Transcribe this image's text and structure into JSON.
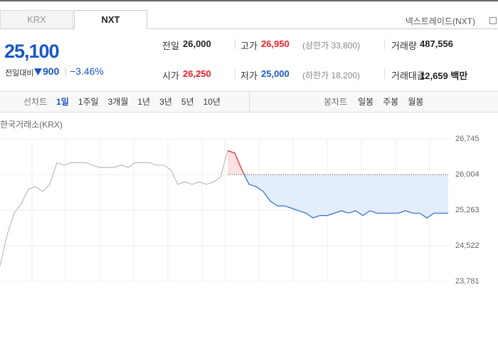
{
  "tabs": [
    "KRX",
    "NXT"
  ],
  "market_name": "넥스트레이드(NXT)",
  "price": "25,100",
  "change": {
    "label": "전일대비",
    "amount": "900",
    "percent": "−3.46%"
  },
  "stats": [
    {
      "label": "전일",
      "value": "26,000",
      "color": "#222"
    },
    {
      "label": "고가",
      "value": "26,950",
      "note": "(상한가 33,800)",
      "color": "#e8202a"
    },
    {
      "label": "거래량",
      "value": "487,556",
      "color": "#222"
    },
    {
      "label": "시가",
      "value": "26,250",
      "color": "#e8202a"
    },
    {
      "label": "저가",
      "value": "25,000",
      "note": "(하한가 18,200)",
      "color": "#1e5bc6"
    },
    {
      "label": "거래대금",
      "value": "12,659 백만",
      "color": "#222"
    }
  ],
  "periods": {
    "line_label": "선차트",
    "line": [
      "1일",
      "1주일",
      "3개월",
      "1년",
      "3년",
      "5년",
      "10년"
    ],
    "candle_label": "봉차트",
    "candle": [
      "일봉",
      "주봉",
      "월봉"
    ]
  },
  "chart_data": {
    "type": "line",
    "title": "한국거래소(KRX)",
    "categories": [
      null,
      null,
      null,
      null,
      null,
      null,
      null,
      null,
      null,
      null,
      null,
      null,
      null,
      null,
      null,
      null,
      null,
      null,
      null,
      null,
      null,
      null,
      null,
      null,
      null,
      null,
      null,
      null,
      null,
      null,
      null,
      null,
      null,
      null,
      null,
      null,
      null,
      null,
      null,
      null,
      null,
      null,
      null,
      null,
      null,
      null,
      null,
      null,
      null,
      null,
      null,
      null,
      null,
      null,
      null,
      null,
      null,
      null,
      null,
      null,
      null,
      null,
      null,
      null
    ],
    "series": [
      {
        "color": "#bbbbbb",
        "values": [
          24100,
          24750,
          25200,
          25400,
          25700,
          25750,
          25650,
          25800,
          26250,
          26200,
          26250,
          26250,
          26250,
          26200,
          26150,
          26150,
          26150,
          26200,
          26150,
          26250,
          26250,
          26250,
          26200,
          26200,
          26100,
          25800,
          25850,
          25800,
          25850,
          25800,
          25850,
          25950,
          26500,
          null,
          null,
          null,
          null,
          null,
          null,
          null,
          null,
          null,
          null,
          null,
          null,
          null,
          null,
          null,
          null,
          null,
          null,
          null,
          null,
          null,
          null,
          null,
          null,
          null,
          null,
          null,
          null,
          null,
          null,
          null
        ]
      },
      {
        "color": "#2a6bcf",
        "up_color": "#e8202a",
        "values": [
          null,
          null,
          null,
          null,
          null,
          null,
          null,
          null,
          null,
          null,
          null,
          null,
          null,
          null,
          null,
          null,
          null,
          null,
          null,
          null,
          null,
          null,
          null,
          null,
          null,
          null,
          null,
          null,
          null,
          null,
          null,
          null,
          26500,
          26450,
          26100,
          25800,
          25750,
          25650,
          25450,
          25350,
          25350,
          25300,
          25250,
          25200,
          25100,
          25150,
          25150,
          25200,
          25250,
          25200,
          25250,
          25150,
          25250,
          25200,
          25200,
          25200,
          25200,
          25250,
          25200,
          25200,
          25100,
          25200,
          25200,
          25200
        ]
      }
    ],
    "baseline": 26000,
    "ylim": [
      23781,
      26745
    ],
    "yticks": [
      {
        "value": 26745,
        "label": "26,745"
      },
      {
        "value": 26004,
        "label": "26,004"
      },
      {
        "value": 25263,
        "label": "25,263"
      },
      {
        "value": 24522,
        "label": "24,522"
      },
      {
        "value": 23781,
        "label": "23,781"
      }
    ],
    "grid": true
  }
}
